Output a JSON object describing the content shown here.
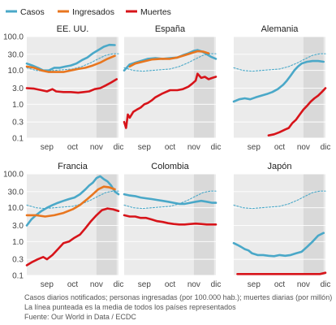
{
  "chart_data": {
    "type": "line",
    "y_scale": "log",
    "ylim": [
      0.1,
      100.0
    ],
    "y_ticks": [
      "100.0",
      "30.0",
      "10.0",
      "3.0",
      "1.0",
      "0.3",
      "0.1"
    ],
    "y_tick_values": [
      100,
      30,
      10,
      3,
      1,
      0.3,
      0.1
    ],
    "x_ticks": [
      "sep",
      "oct",
      "nov",
      "dic"
    ],
    "x_tick_values": [
      0.22,
      0.5,
      0.76,
      1.0
    ],
    "x_domain": [
      "ago",
      "dic"
    ],
    "shaded_region": [
      0.76,
      0.98
    ],
    "grid": true,
    "legend": {
      "placement": "top-left",
      "entries": [
        {
          "name": "Casos",
          "color": "#4aa8c8"
        },
        {
          "name": "Ingresados",
          "color": "#e8761f"
        },
        {
          "name": "Muertes",
          "color": "#d7141a"
        }
      ]
    },
    "panels": [
      {
        "title": "EE. UU.",
        "series": [
          {
            "name": "Casos",
            "x": [
              0.0,
              0.06,
              0.12,
              0.18,
              0.24,
              0.3,
              0.36,
              0.42,
              0.48,
              0.54,
              0.6,
              0.66,
              0.72,
              0.78,
              0.84,
              0.9,
              0.96
            ],
            "values": [
              16,
              14,
              12,
              10,
              10,
              12,
              12,
              13,
              14,
              16,
              20,
              24,
              32,
              40,
              50,
              57,
              56
            ]
          },
          {
            "name": "Ingresados",
            "x": [
              0.0,
              0.08,
              0.16,
              0.24,
              0.32,
              0.4,
              0.48,
              0.56,
              0.64,
              0.72,
              0.8,
              0.88,
              0.96
            ],
            "values": [
              13,
              12,
              10,
              9,
              9,
              9,
              10,
              11,
              12,
              14,
              17,
              22,
              27
            ]
          },
          {
            "name": "Muertes",
            "x": [
              0.0,
              0.08,
              0.16,
              0.22,
              0.28,
              0.32,
              0.4,
              0.48,
              0.56,
              0.62,
              0.68,
              0.74,
              0.8,
              0.86,
              0.92,
              0.98
            ],
            "values": [
              3.0,
              2.9,
              2.6,
              2.4,
              2.8,
              2.4,
              2.3,
              2.3,
              2.2,
              2.3,
              2.4,
              2.8,
              3.0,
              3.6,
              4.4,
              5.5
            ]
          },
          {
            "name": "media",
            "x": [
              0.0,
              0.1,
              0.2,
              0.3,
              0.4,
              0.5,
              0.6,
              0.7,
              0.78,
              0.86,
              0.94,
              1.0
            ],
            "values": [
              12,
              10,
              9.5,
              10,
              10.5,
              11,
              13,
              17,
              22,
              28,
              31,
              31
            ]
          }
        ]
      },
      {
        "title": "España",
        "series": [
          {
            "name": "Casos",
            "x": [
              0.0,
              0.06,
              0.12,
              0.18,
              0.26,
              0.34,
              0.42,
              0.5,
              0.58,
              0.64,
              0.7,
              0.76,
              0.8,
              0.85,
              0.9,
              0.95,
              1.0
            ],
            "values": [
              10,
              15,
              17,
              19,
              22,
              23,
              22,
              23,
              24,
              28,
              32,
              38,
              40,
              36,
              30,
              25,
              22
            ]
          },
          {
            "name": "Ingresados",
            "x": [
              0.06,
              0.12,
              0.2,
              0.3,
              0.4,
              0.5,
              0.58,
              0.66,
              0.74,
              0.8,
              0.86,
              0.92
            ],
            "values": [
              13,
              16,
              18,
              21,
              22,
              22,
              24,
              28,
              33,
              37,
              36,
              32
            ]
          },
          {
            "name": "Muertes",
            "x": [
              0.0,
              0.02,
              0.04,
              0.06,
              0.1,
              0.14,
              0.18,
              0.22,
              0.26,
              0.3,
              0.34,
              0.42,
              0.5,
              0.58,
              0.64,
              0.7,
              0.74,
              0.78,
              0.8,
              0.84,
              0.88,
              0.92,
              0.96,
              1.0
            ],
            "values": [
              0.3,
              0.2,
              0.5,
              0.4,
              0.6,
              0.7,
              0.8,
              1.0,
              1.1,
              1.3,
              1.6,
              2.1,
              2.6,
              2.6,
              2.8,
              3.3,
              4.0,
              5.0,
              8.0,
              6.0,
              6.5,
              5.5,
              6.0,
              6.5
            ]
          },
          {
            "name": "media",
            "x": [
              0.0,
              0.1,
              0.2,
              0.3,
              0.4,
              0.5,
              0.6,
              0.7,
              0.78,
              0.86,
              0.94,
              1.0
            ],
            "values": [
              12,
              10,
              9.5,
              10,
              10.5,
              11,
              13,
              17,
              22,
              28,
              31,
              31
            ]
          }
        ]
      },
      {
        "title": "Alemania",
        "series": [
          {
            "name": "Casos",
            "x": [
              0.0,
              0.06,
              0.12,
              0.18,
              0.24,
              0.3,
              0.36,
              0.42,
              0.48,
              0.54,
              0.58,
              0.62,
              0.66,
              0.7,
              0.74,
              0.8,
              0.86,
              0.92,
              0.98
            ],
            "values": [
              1.2,
              1.4,
              1.5,
              1.4,
              1.6,
              1.8,
              2.0,
              2.3,
              2.8,
              3.8,
              5,
              7,
              10,
              13,
              16,
              18,
              19,
              19,
              18
            ]
          },
          {
            "name": "Muertes",
            "x": [
              0.38,
              0.44,
              0.5,
              0.56,
              0.6,
              0.64,
              0.68,
              0.72,
              0.76,
              0.8,
              0.84,
              0.88,
              0.92,
              0.96,
              1.0
            ],
            "values": [
              0.12,
              0.13,
              0.15,
              0.18,
              0.2,
              0.28,
              0.35,
              0.5,
              0.7,
              0.9,
              1.2,
              1.5,
              1.8,
              2.3,
              3.0
            ]
          },
          {
            "name": "media",
            "x": [
              0.0,
              0.1,
              0.2,
              0.3,
              0.4,
              0.5,
              0.6,
              0.7,
              0.78,
              0.86,
              0.94,
              1.0
            ],
            "values": [
              12,
              10,
              9.5,
              10,
              10.5,
              11,
              13,
              17,
              22,
              28,
              31,
              31
            ]
          }
        ]
      },
      {
        "title": "Francia",
        "series": [
          {
            "name": "Casos",
            "x": [
              0.0,
              0.05,
              0.1,
              0.16,
              0.22,
              0.28,
              0.34,
              0.4,
              0.46,
              0.52,
              0.58,
              0.64,
              0.68,
              0.72,
              0.76,
              0.8,
              0.84,
              0.88,
              0.92,
              0.96,
              1.0
            ],
            "values": [
              3.0,
              4.5,
              6,
              8,
              10,
              12,
              14,
              16,
              18,
              20,
              25,
              35,
              45,
              55,
              75,
              85,
              70,
              60,
              45,
              30,
              25
            ]
          },
          {
            "name": "Ingresados",
            "x": [
              0.0,
              0.1,
              0.2,
              0.3,
              0.4,
              0.5,
              0.58,
              0.66,
              0.72,
              0.78,
              0.84,
              0.9,
              0.96
            ],
            "values": [
              6,
              6,
              5.5,
              6,
              7,
              9,
              12,
              18,
              25,
              35,
              42,
              40,
              35
            ]
          },
          {
            "name": "Muertes",
            "x": [
              0.0,
              0.06,
              0.12,
              0.18,
              0.22,
              0.28,
              0.34,
              0.4,
              0.46,
              0.52,
              0.58,
              0.64,
              0.7,
              0.76,
              0.82,
              0.88,
              0.94,
              1.0
            ],
            "values": [
              0.2,
              0.25,
              0.3,
              0.35,
              0.3,
              0.4,
              0.6,
              0.9,
              1.0,
              1.3,
              1.6,
              2.5,
              4,
              6,
              8.5,
              9.5,
              9.0,
              8.0
            ]
          },
          {
            "name": "media",
            "x": [
              0.0,
              0.1,
              0.2,
              0.3,
              0.4,
              0.5,
              0.6,
              0.7,
              0.78,
              0.86,
              0.94,
              1.0
            ],
            "values": [
              12,
              10,
              9.5,
              10,
              10.5,
              11,
              13,
              17,
              22,
              28,
              31,
              31
            ]
          }
        ]
      },
      {
        "title": "Colombia",
        "series": [
          {
            "name": "Casos",
            "x": [
              0.0,
              0.06,
              0.12,
              0.18,
              0.24,
              0.3,
              0.36,
              0.42,
              0.48,
              0.54,
              0.6,
              0.66,
              0.72,
              0.78,
              0.84,
              0.9,
              0.96,
              1.0
            ],
            "values": [
              25,
              23,
              22,
              20,
              19,
              18,
              17,
              16,
              15,
              14,
              13,
              13,
              14,
              15,
              16,
              15,
              14,
              14
            ]
          },
          {
            "name": "Muertes",
            "x": [
              0.0,
              0.06,
              0.12,
              0.18,
              0.24,
              0.3,
              0.36,
              0.42,
              0.48,
              0.54,
              0.6,
              0.66,
              0.72,
              0.78,
              0.84,
              0.9,
              0.96,
              1.0
            ],
            "values": [
              6,
              5.5,
              5.5,
              5,
              5,
              4.5,
              4,
              3.8,
              3.5,
              3.3,
              3.2,
              3.2,
              3.3,
              3.4,
              3.3,
              3.2,
              3.2,
              3.2
            ]
          },
          {
            "name": "media",
            "x": [
              0.0,
              0.1,
              0.2,
              0.3,
              0.4,
              0.5,
              0.6,
              0.7,
              0.78,
              0.86,
              0.94,
              1.0
            ],
            "values": [
              12,
              10,
              9.5,
              10,
              10.5,
              11,
              13,
              17,
              22,
              28,
              31,
              31
            ]
          }
        ]
      },
      {
        "title": "Japón",
        "series": [
          {
            "name": "Casos",
            "x": [
              0.0,
              0.04,
              0.08,
              0.12,
              0.16,
              0.2,
              0.26,
              0.32,
              0.38,
              0.44,
              0.5,
              0.56,
              0.62,
              0.68,
              0.74,
              0.8,
              0.86,
              0.92,
              0.98
            ],
            "values": [
              0.9,
              0.8,
              0.7,
              0.6,
              0.55,
              0.45,
              0.4,
              0.4,
              0.38,
              0.37,
              0.4,
              0.38,
              0.4,
              0.45,
              0.5,
              0.7,
              1.0,
              1.5,
              1.8
            ]
          },
          {
            "name": "Muertes",
            "x": [
              0.04,
              0.2,
              0.4,
              0.6,
              0.8,
              0.94,
              1.0
            ],
            "values": [
              0.11,
              0.11,
              0.11,
              0.11,
              0.11,
              0.11,
              0.12
            ]
          },
          {
            "name": "media",
            "x": [
              0.0,
              0.1,
              0.2,
              0.3,
              0.4,
              0.5,
              0.6,
              0.7,
              0.78,
              0.86,
              0.94,
              1.0
            ],
            "values": [
              12,
              10,
              9.5,
              10,
              10.5,
              11,
              13,
              17,
              22,
              28,
              31,
              31
            ]
          }
        ]
      }
    ]
  },
  "footnote": {
    "line1": "Casos diarios notificados; personas ingresadas (por 100.000 hab.); muertes diarias (por millón)",
    "line2": "La línea punteada es la media de todos los países representados",
    "line3": "Fuente: Our World in Data / ECDC"
  }
}
